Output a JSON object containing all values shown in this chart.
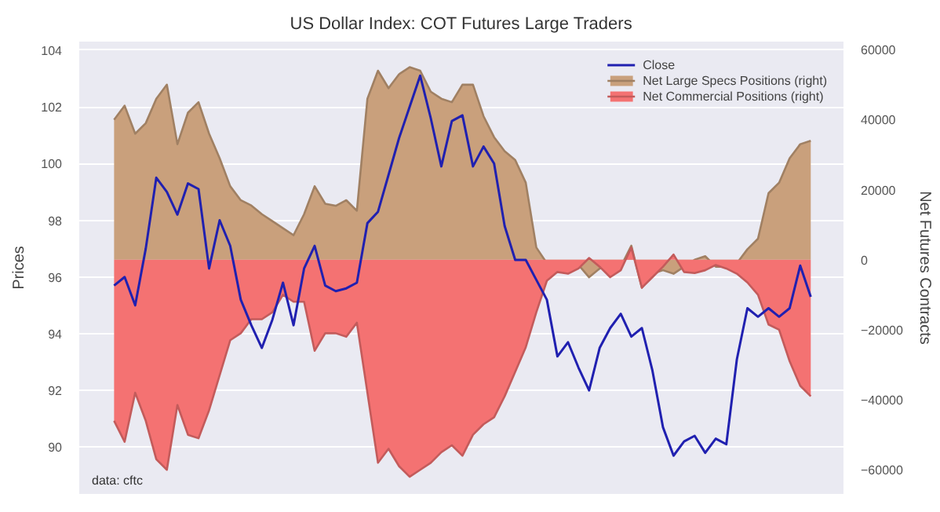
{
  "chart_data": {
    "type": "line",
    "title": "US Dollar Index: COT Futures Large Traders",
    "ylabel": "Prices",
    "y2label": "Net Futures Contracts",
    "categories": [
      null,
      null,
      null,
      null,
      null,
      null,
      null,
      null,
      null,
      null,
      null,
      null,
      null,
      null,
      null,
      null,
      null,
      null,
      null,
      null,
      null,
      null,
      null,
      null,
      null,
      null,
      null,
      null,
      null,
      null,
      null,
      null,
      null,
      null,
      null,
      null,
      null,
      null,
      null,
      null,
      null,
      null,
      null,
      null,
      null,
      null,
      null,
      null,
      null,
      null,
      null,
      null,
      null,
      null,
      null,
      null,
      null,
      null,
      null,
      null,
      null,
      null,
      null,
      null,
      null,
      null,
      null
    ],
    "series": [
      {
        "name": "Close",
        "color": "#2020b0",
        "values": [
          95.7,
          96.0,
          95.0,
          97.0,
          99.5,
          99.0,
          98.2,
          99.3,
          99.1,
          96.3,
          98.0,
          97.1,
          95.2,
          94.3,
          93.5,
          94.5,
          95.8,
          94.3,
          96.3,
          97.1,
          95.7,
          95.5,
          95.6,
          95.8,
          97.9,
          98.3,
          99.6,
          100.9,
          102.0,
          103.1,
          101.6,
          99.9,
          101.5,
          101.7,
          99.9,
          100.6,
          100.0,
          97.8,
          96.6,
          96.6,
          95.9,
          95.2,
          93.2,
          93.7,
          92.8,
          92.0,
          93.5,
          94.2,
          94.7,
          93.9,
          94.2,
          92.7,
          90.7,
          89.7,
          90.2,
          90.4,
          89.8,
          90.3,
          90.1,
          93.1,
          94.9,
          94.6,
          94.9,
          94.6,
          94.9,
          96.4,
          95.3
        ]
      },
      {
        "name": "Net Large Specs Positions (right)",
        "type": "area",
        "axis": "y2",
        "color": "#c9a07c",
        "values": [
          40000,
          44000,
          36000,
          39000,
          46000,
          50000,
          33000,
          42000,
          45000,
          36000,
          29000,
          21000,
          17000,
          15500,
          13000,
          11000,
          9000,
          7000,
          13000,
          21000,
          16000,
          15400,
          17000,
          14000,
          46000,
          54000,
          49000,
          53000,
          55000,
          54000,
          48000,
          46000,
          45000,
          50000,
          50000,
          41000,
          35000,
          31000,
          28500,
          22000,
          3500,
          -1000,
          -2500,
          -3000,
          -1500,
          -5000,
          -2500,
          -2000,
          -2000,
          4000,
          -8000,
          -4000,
          -3000,
          -4000,
          -2000,
          0,
          1000,
          -2000,
          -2000,
          -1000,
          3000,
          6000,
          19000,
          22000,
          29000,
          33000,
          34000
        ]
      },
      {
        "name": "Net Commercial Positions (right)",
        "type": "area",
        "axis": "y2",
        "color": "#f47272",
        "values": [
          -46000,
          -52000,
          -38000,
          -46000,
          -57000,
          -60000,
          -41500,
          -50000,
          -51000,
          -43000,
          -33000,
          -23000,
          -21000,
          -17000,
          -17000,
          -15000,
          -10000,
          -12000,
          -12000,
          -26000,
          -21000,
          -21000,
          -22000,
          -18000,
          -38000,
          -58000,
          -54000,
          -59000,
          -62000,
          -60000,
          -58000,
          -55000,
          -53000,
          -56000,
          -50000,
          -47000,
          -45000,
          -39000,
          -32000,
          -25000,
          -15000,
          -6000,
          -3500,
          -4000,
          -2500,
          500,
          -2000,
          -5000,
          -3000,
          3500,
          -8000,
          -5000,
          -2000,
          1500,
          -3500,
          -3800,
          -3000,
          -1500,
          -2500,
          -4000,
          -6500,
          -10000,
          -18500,
          -20000,
          -29000,
          -36000,
          -39000
        ]
      }
    ],
    "ylim": [
      88.35,
      104.3
    ],
    "yticks": [
      90,
      92,
      94,
      96,
      98,
      100,
      102,
      104
    ],
    "y2lim": [
      -66900,
      62300
    ],
    "y2ticks": [
      -60000,
      -40000,
      -20000,
      0,
      20000,
      40000,
      60000
    ],
    "grid": "y",
    "legend": "top right",
    "annotations": [
      "data: cftc"
    ]
  }
}
